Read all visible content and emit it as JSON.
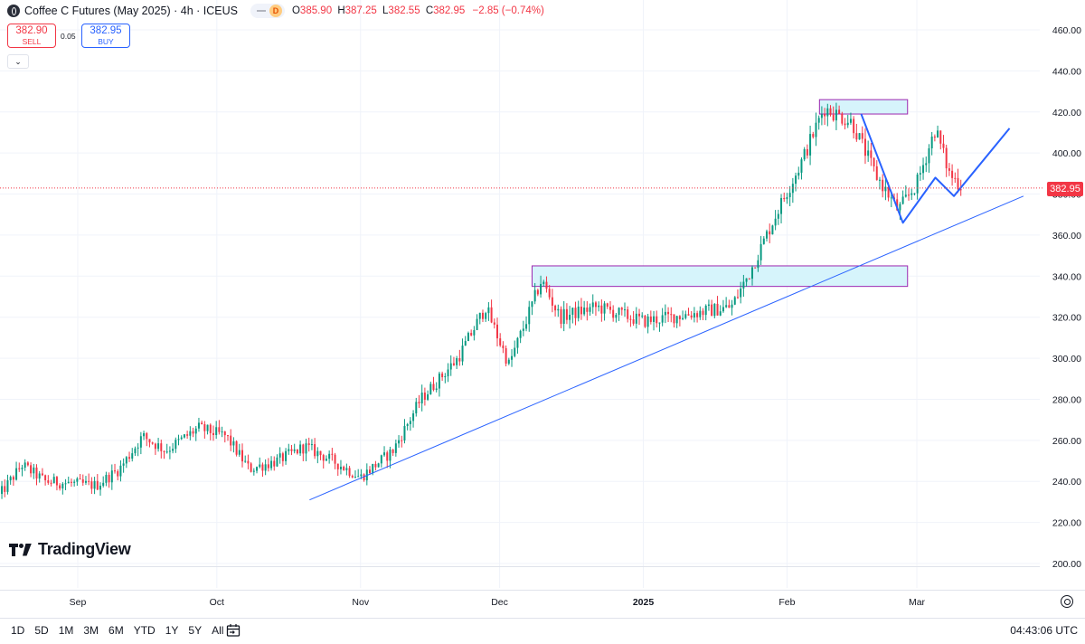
{
  "header": {
    "title": "Coffee C Futures (May 2025) · 4h · ICEUS",
    "interval_badge": "D",
    "ohlc": [
      {
        "key": "O",
        "value": "385.90"
      },
      {
        "key": "H",
        "value": "387.25"
      },
      {
        "key": "L",
        "value": "382.55"
      },
      {
        "key": "C",
        "value": "382.95"
      }
    ],
    "change": "−2.85 (−0.74%)"
  },
  "trade": {
    "sell_price": "382.90",
    "sell_label": "SELL",
    "buy_price": "382.95",
    "buy_label": "BUY",
    "spread": "0.05"
  },
  "watermark": "TradingView",
  "bottom": {
    "ranges": [
      "1D",
      "5D",
      "1M",
      "3M",
      "6M",
      "YTD",
      "1Y",
      "5Y",
      "All"
    ],
    "clock": "04:43:06 UTC"
  },
  "colors": {
    "up": "#089981",
    "down": "#f23645",
    "trend": "#2962ff",
    "zone_fill": "#d6f4fb",
    "zone_border": "#9c27b0"
  },
  "chart_data": {
    "type": "candlestick",
    "interval": "4h",
    "last_price": 382.95,
    "y_axis": {
      "range": [
        200,
        460
      ],
      "ticks": [
        "460.00",
        "440.00",
        "420.00",
        "400.00",
        "380.00",
        "360.00",
        "340.00",
        "320.00",
        "300.00",
        "280.00",
        "260.00",
        "240.00",
        "220.00",
        "200.00"
      ]
    },
    "x_axis": {
      "ticks": [
        {
          "label": "Sep",
          "date": "2024-09-01"
        },
        {
          "label": "Oct",
          "date": "2024-10-01"
        },
        {
          "label": "Nov",
          "date": "2024-11-01"
        },
        {
          "label": "Dec",
          "date": "2024-12-01"
        },
        {
          "label": "2025",
          "date": "2025-01-01"
        },
        {
          "label": "Feb",
          "date": "2025-02-01"
        },
        {
          "label": "Mar",
          "date": "2025-03-01"
        }
      ]
    },
    "price_path": [
      [
        "2024-08-15",
        233
      ],
      [
        "2024-08-20",
        248
      ],
      [
        "2024-08-25",
        240
      ],
      [
        "2024-09-05",
        238
      ],
      [
        "2024-09-10",
        246
      ],
      [
        "2024-09-15",
        262
      ],
      [
        "2024-09-20",
        255
      ],
      [
        "2024-09-27",
        266
      ],
      [
        "2024-10-03",
        262
      ],
      [
        "2024-10-08",
        246
      ],
      [
        "2024-10-14",
        250
      ],
      [
        "2024-10-20",
        257
      ],
      [
        "2024-10-26",
        250
      ],
      [
        "2024-11-01",
        242
      ],
      [
        "2024-11-08",
        255
      ],
      [
        "2024-11-14",
        280
      ],
      [
        "2024-11-22",
        300
      ],
      [
        "2024-11-28",
        325
      ],
      [
        "2024-12-03",
        297
      ],
      [
        "2024-12-07",
        320
      ],
      [
        "2024-12-10",
        338
      ],
      [
        "2024-12-14",
        320
      ],
      [
        "2024-12-22",
        325
      ],
      [
        "2025-01-01",
        318
      ],
      [
        "2025-01-12",
        322
      ],
      [
        "2025-01-20",
        325
      ],
      [
        "2025-01-24",
        342
      ],
      [
        "2025-01-30",
        372
      ],
      [
        "2025-02-04",
        395
      ],
      [
        "2025-02-09",
        422
      ],
      [
        "2025-02-15",
        415
      ],
      [
        "2025-02-20",
        390
      ],
      [
        "2025-02-25",
        372
      ],
      [
        "2025-03-01",
        385
      ],
      [
        "2025-03-05",
        412
      ],
      [
        "2025-03-08",
        390
      ],
      [
        "2025-03-11",
        382.95
      ]
    ],
    "drawings": {
      "trendline": {
        "from": [
          "2024-10-21",
          231
        ],
        "to": [
          "2025-03-24",
          379
        ]
      },
      "zones": [
        {
          "from": "2024-12-08",
          "to": "2025-02-27",
          "low": 335,
          "high": 345
        },
        {
          "from": "2025-02-08",
          "to": "2025-02-27",
          "low": 419,
          "high": 426
        }
      ],
      "pattern_path": [
        [
          "2025-02-17",
          419
        ],
        [
          "2025-02-26",
          366
        ],
        [
          "2025-03-05",
          388
        ],
        [
          "2025-03-09",
          379
        ],
        [
          "2025-03-21",
          412
        ]
      ]
    }
  }
}
